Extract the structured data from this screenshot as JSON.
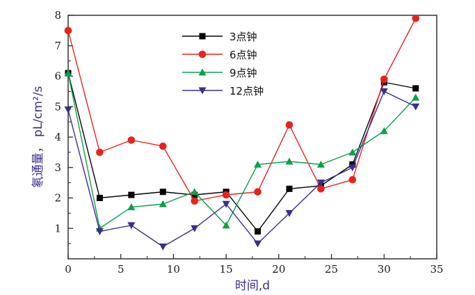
{
  "chart_data": {
    "type": "line",
    "title": "",
    "xlabel": "时间,d",
    "ylabel": "氡通量， pL/cm²/s",
    "xlim": [
      0,
      35
    ],
    "ylim": [
      0,
      8
    ],
    "xticks": [
      0,
      5,
      10,
      15,
      20,
      25,
      30,
      35
    ],
    "yticks": [
      1,
      2,
      3,
      4,
      5,
      6,
      7,
      8
    ],
    "grid": false,
    "legend_position": "top-center",
    "x": [
      0,
      3,
      6,
      9,
      12,
      15,
      18,
      21,
      24,
      27,
      30,
      33
    ],
    "series": [
      {
        "name": "3点钟",
        "color": "#000000",
        "marker": "square",
        "values": [
          6.1,
          2.0,
          2.1,
          2.2,
          2.1,
          2.2,
          0.9,
          2.3,
          2.4,
          3.1,
          5.8,
          5.6
        ]
      },
      {
        "name": "6点钟",
        "color": "#e8231f",
        "marker": "circle",
        "values": [
          7.5,
          3.5,
          3.9,
          3.7,
          1.9,
          2.1,
          2.2,
          4.4,
          2.3,
          2.6,
          5.9,
          7.9
        ]
      },
      {
        "name": "9点钟",
        "color": "#0aa14a",
        "marker": "triangle-up",
        "values": [
          6.1,
          1.0,
          1.7,
          1.8,
          2.2,
          1.1,
          3.1,
          3.2,
          3.1,
          3.5,
          4.2,
          5.3
        ]
      },
      {
        "name": "12点钟",
        "color": "#3a2d8f",
        "marker": "triangle-down",
        "values": [
          4.9,
          0.9,
          1.1,
          0.4,
          1.0,
          1.8,
          0.5,
          1.5,
          2.5,
          3.0,
          5.5,
          5.0
        ]
      }
    ]
  }
}
